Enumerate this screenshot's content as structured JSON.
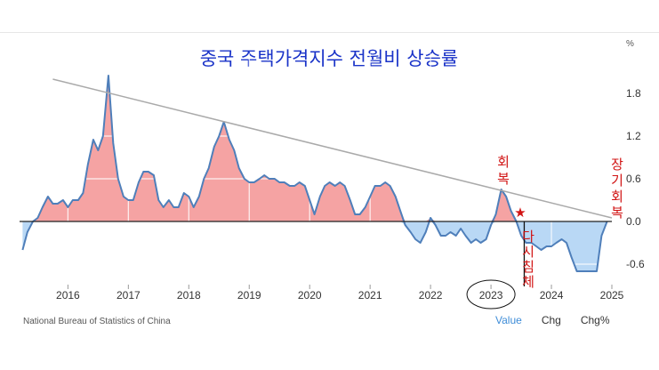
{
  "chart_data": {
    "type": "area",
    "title": "중국 주택가격지수 전월비 상승률",
    "unit": "%",
    "source": "National Bureau of Statistics of China",
    "x_ticks": [
      "2016",
      "2017",
      "2018",
      "2019",
      "2020",
      "2021",
      "2022",
      "2023",
      "2024",
      "2025"
    ],
    "y_ticks": [
      "1.8",
      "1.2",
      "0.6",
      "0.0",
      "-0.6"
    ],
    "ylim": [
      -0.8,
      2.2
    ],
    "xlim": [
      2015.2,
      2025.0
    ],
    "positive_fill": "#f5a3a3",
    "negative_fill": "#b9d8f5",
    "line_color": "#4f7fba",
    "series": [
      {
        "values": [
          [
            2015.25,
            -0.4
          ],
          [
            2015.33,
            -0.15
          ],
          [
            2015.42,
            0.0
          ],
          [
            2015.5,
            0.05
          ],
          [
            2015.58,
            0.2
          ],
          [
            2015.67,
            0.35
          ],
          [
            2015.75,
            0.25
          ],
          [
            2015.83,
            0.25
          ],
          [
            2015.92,
            0.3
          ],
          [
            2016.0,
            0.2
          ],
          [
            2016.08,
            0.3
          ],
          [
            2016.17,
            0.3
          ],
          [
            2016.25,
            0.4
          ],
          [
            2016.33,
            0.8
          ],
          [
            2016.42,
            1.15
          ],
          [
            2016.5,
            1.0
          ],
          [
            2016.58,
            1.2
          ],
          [
            2016.67,
            2.05
          ],
          [
            2016.75,
            1.1
          ],
          [
            2016.83,
            0.6
          ],
          [
            2016.92,
            0.35
          ],
          [
            2017.0,
            0.3
          ],
          [
            2017.08,
            0.3
          ],
          [
            2017.17,
            0.55
          ],
          [
            2017.25,
            0.7
          ],
          [
            2017.33,
            0.7
          ],
          [
            2017.42,
            0.65
          ],
          [
            2017.5,
            0.3
          ],
          [
            2017.58,
            0.2
          ],
          [
            2017.67,
            0.3
          ],
          [
            2017.75,
            0.2
          ],
          [
            2017.83,
            0.2
          ],
          [
            2017.92,
            0.4
          ],
          [
            2018.0,
            0.35
          ],
          [
            2018.08,
            0.2
          ],
          [
            2018.17,
            0.35
          ],
          [
            2018.25,
            0.6
          ],
          [
            2018.33,
            0.75
          ],
          [
            2018.42,
            1.05
          ],
          [
            2018.5,
            1.2
          ],
          [
            2018.58,
            1.4
          ],
          [
            2018.67,
            1.15
          ],
          [
            2018.75,
            1.0
          ],
          [
            2018.83,
            0.75
          ],
          [
            2018.92,
            0.6
          ],
          [
            2019.0,
            0.55
          ],
          [
            2019.08,
            0.55
          ],
          [
            2019.17,
            0.6
          ],
          [
            2019.25,
            0.65
          ],
          [
            2019.33,
            0.6
          ],
          [
            2019.42,
            0.6
          ],
          [
            2019.5,
            0.55
          ],
          [
            2019.58,
            0.55
          ],
          [
            2019.67,
            0.5
          ],
          [
            2019.75,
            0.5
          ],
          [
            2019.83,
            0.55
          ],
          [
            2019.92,
            0.5
          ],
          [
            2020.0,
            0.3
          ],
          [
            2020.08,
            0.1
          ],
          [
            2020.17,
            0.35
          ],
          [
            2020.25,
            0.5
          ],
          [
            2020.33,
            0.55
          ],
          [
            2020.42,
            0.5
          ],
          [
            2020.5,
            0.55
          ],
          [
            2020.58,
            0.5
          ],
          [
            2020.67,
            0.3
          ],
          [
            2020.75,
            0.1
          ],
          [
            2020.83,
            0.1
          ],
          [
            2020.92,
            0.2
          ],
          [
            2021.0,
            0.35
          ],
          [
            2021.08,
            0.5
          ],
          [
            2021.17,
            0.5
          ],
          [
            2021.25,
            0.55
          ],
          [
            2021.33,
            0.5
          ],
          [
            2021.42,
            0.35
          ],
          [
            2021.5,
            0.15
          ],
          [
            2021.58,
            -0.05
          ],
          [
            2021.67,
            -0.15
          ],
          [
            2021.75,
            -0.25
          ],
          [
            2021.83,
            -0.3
          ],
          [
            2021.92,
            -0.15
          ],
          [
            2022.0,
            0.05
          ],
          [
            2022.08,
            -0.05
          ],
          [
            2022.17,
            -0.2
          ],
          [
            2022.25,
            -0.2
          ],
          [
            2022.33,
            -0.15
          ],
          [
            2022.42,
            -0.2
          ],
          [
            2022.5,
            -0.1
          ],
          [
            2022.58,
            -0.2
          ],
          [
            2022.67,
            -0.3
          ],
          [
            2022.75,
            -0.25
          ],
          [
            2022.83,
            -0.3
          ],
          [
            2022.92,
            -0.25
          ],
          [
            2023.0,
            -0.05
          ],
          [
            2023.08,
            0.1
          ],
          [
            2023.17,
            0.45
          ],
          [
            2023.25,
            0.35
          ],
          [
            2023.33,
            0.15
          ],
          [
            2023.42,
            0.0
          ],
          [
            2023.5,
            -0.2
          ],
          [
            2023.58,
            -0.3
          ],
          [
            2023.67,
            -0.3
          ],
          [
            2023.75,
            -0.35
          ],
          [
            2023.83,
            -0.4
          ],
          [
            2023.92,
            -0.35
          ],
          [
            2024.0,
            -0.35
          ],
          [
            2024.08,
            -0.3
          ],
          [
            2024.17,
            -0.25
          ],
          [
            2024.25,
            -0.3
          ],
          [
            2024.33,
            -0.5
          ],
          [
            2024.42,
            -0.7
          ],
          [
            2024.5,
            -0.7
          ],
          [
            2024.58,
            -0.7
          ],
          [
            2024.67,
            -0.7
          ],
          [
            2024.75,
            -0.7
          ],
          [
            2024.83,
            -0.2
          ],
          [
            2024.92,
            0.0
          ]
        ]
      }
    ],
    "trend_line": {
      "x": [
        2015.75,
        2025.0
      ],
      "y": [
        2.0,
        0.05
      ],
      "color": "#aaaaaa"
    },
    "annotations": [
      {
        "id": "recovery",
        "text": "회\n복"
      },
      {
        "id": "slump",
        "text": "다\n시\n침\n체"
      },
      {
        "id": "long-term-recovery",
        "text": "장\n기\n회\n복"
      },
      {
        "id": "star",
        "text": "★"
      }
    ],
    "highlight_year": "2023"
  },
  "tabs": [
    {
      "label": "Value",
      "active": true
    },
    {
      "label": "Chg",
      "active": false
    },
    {
      "label": "Chg%",
      "active": false
    }
  ]
}
